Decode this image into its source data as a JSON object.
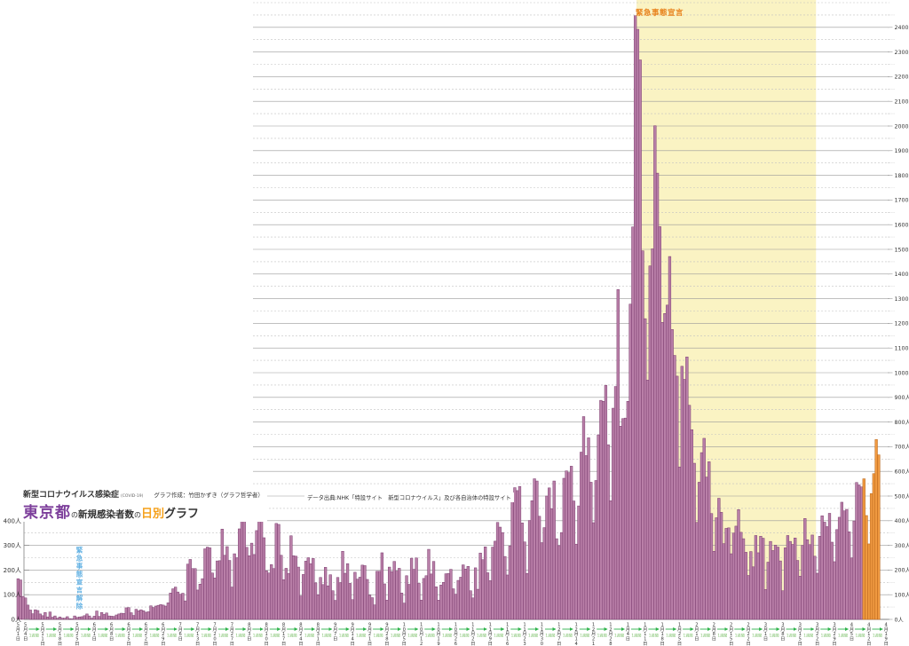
{
  "header": {
    "line1_title": "新型コロナウイルス感染症",
    "line1_covid": "(COVID-19)",
    "line1_credit": "グラフ作成：竹田かずき（グラフ哲学者）",
    "line2_region": "東京都",
    "line2_no1": "の",
    "line2_subject": "新規感染者数",
    "line2_no2": "の",
    "line2_daily": "日別",
    "line2_graph": "グラフ",
    "source": "データ出典:NHK「特設サイト　新型コロナウイルス」及び各自治体の特設サイト"
  },
  "annotations": {
    "emergency_band_label": "緊急事態宣言",
    "emergency_lifted_label": "緊急事態宣言解除",
    "week_arrow_label": "1週間",
    "month_suffix": "月",
    "day_suffix": "日"
  },
  "colors": {
    "bar_fill": "#b97fa8",
    "bar_stroke": "#7a3c6e",
    "alert_bar_fill": "#ef9940",
    "alert_bar_stroke": "#b9651a",
    "band_fill": "#faf3c3",
    "grid_major": "#9a9a9a",
    "grid_minor": "#c2c2c2",
    "arrow_green": "#2db34a",
    "week_label_green": "#7cc06a",
    "axis_text": "#333333"
  },
  "chart_data": {
    "type": "bar",
    "title": "東京都の新規感染者数の日別グラフ",
    "subtitle": "新型コロナウイルス感染症 (COVID-19)",
    "xlabel": "",
    "ylabel": "人",
    "unit": "人",
    "ylim": [
      0,
      2500
    ],
    "y_major_step": 100,
    "y_minor_step": 50,
    "y_right_label_max": 2400,
    "y_left_label_max": 400,
    "grid": true,
    "legend_position": "none",
    "x_start_date": "2020-05-01",
    "x_tick_rule": "first-day-and-every-monday",
    "emergency_band": {
      "start_index": 252,
      "end_index": 324,
      "label": "緊急事態宣言"
    },
    "lifted_marker_index": 24,
    "alert_start_index": 344,
    "values": [
      165,
      160,
      93,
      87,
      58,
      38,
      23,
      39,
      36,
      22,
      15,
      28,
      10,
      30,
      9,
      14,
      5,
      10,
      5,
      5,
      11,
      3,
      2,
      14,
      8,
      10,
      11,
      15,
      22,
      14,
      5,
      13,
      34,
      12,
      28,
      20,
      26,
      14,
      13,
      12,
      18,
      22,
      25,
      24,
      47,
      48,
      27,
      16,
      41,
      35,
      39,
      35,
      29,
      31,
      55,
      48,
      54,
      57,
      60,
      58,
      54,
      67,
      107,
      124,
      131,
      111,
      102,
      106,
      75,
      224,
      243,
      206,
      206,
      119,
      143,
      165,
      286,
      293,
      290,
      188,
      168,
      237,
      238,
      366,
      260,
      295,
      239,
      131,
      266,
      250,
      367,
      463,
      472,
      292,
      258,
      309,
      263,
      360,
      462,
      429,
      331,
      197,
      188,
      222,
      206,
      389,
      385,
      260,
      161,
      207,
      186,
      339,
      258,
      256,
      212,
      95,
      182,
      236,
      250,
      226,
      247,
      148,
      100,
      170,
      141,
      211,
      136,
      181,
      116,
      77,
      170,
      149,
      276,
      187,
      226,
      146,
      80,
      191,
      163,
      171,
      220,
      218,
      162,
      98,
      88,
      59,
      195,
      195,
      270,
      144,
      78,
      212,
      194,
      235,
      196,
      207,
      107,
      66,
      177,
      142,
      248,
      203,
      249,
      146,
      78,
      166,
      177,
      284,
      184,
      235,
      132,
      78,
      139,
      150,
      185,
      186,
      203,
      124,
      102,
      158,
      171,
      221,
      204,
      215,
      116,
      87,
      209,
      122,
      269,
      242,
      294,
      189,
      157,
      293,
      317,
      393,
      374,
      352,
      255,
      180,
      298,
      493,
      534,
      522,
      539,
      391,
      314,
      186,
      401,
      481,
      570,
      561,
      418,
      311,
      372,
      500,
      533,
      449,
      561,
      327,
      299,
      352,
      572,
      602,
      595,
      621,
      480,
      305,
      460,
      678,
      822,
      664,
      736,
      556,
      392,
      563,
      748,
      888,
      884,
      949,
      708,
      481,
      856,
      944,
      1337,
      783,
      814,
      816,
      884,
      1278,
      1591,
      2447,
      2392,
      2268,
      1494,
      1219,
      970,
      1433,
      1502,
      2001,
      1809,
      1592,
      1204,
      1240,
      1274,
      1471,
      1175,
      1070,
      986,
      618,
      1026,
      973,
      1064,
      868,
      769,
      633,
      393,
      556,
      676,
      734,
      577,
      639,
      429,
      276,
      412,
      491,
      434,
      307,
      369,
      371,
      266,
      350,
      378,
      445,
      353,
      327,
      272,
      178,
      275,
      213,
      340,
      270,
      337,
      329,
      121,
      232,
      316,
      279,
      301,
      293,
      237,
      116,
      290,
      340,
      316,
      304,
      330,
      239,
      175,
      300,
      409,
      323,
      303,
      342,
      256,
      187,
      337,
      420,
      394,
      376,
      430,
      313,
      234,
      364,
      414,
      475,
      440,
      446,
      355,
      249,
      399,
      555,
      545,
      537,
      570,
      421,
      306,
      510,
      591,
      729,
      667
    ]
  }
}
